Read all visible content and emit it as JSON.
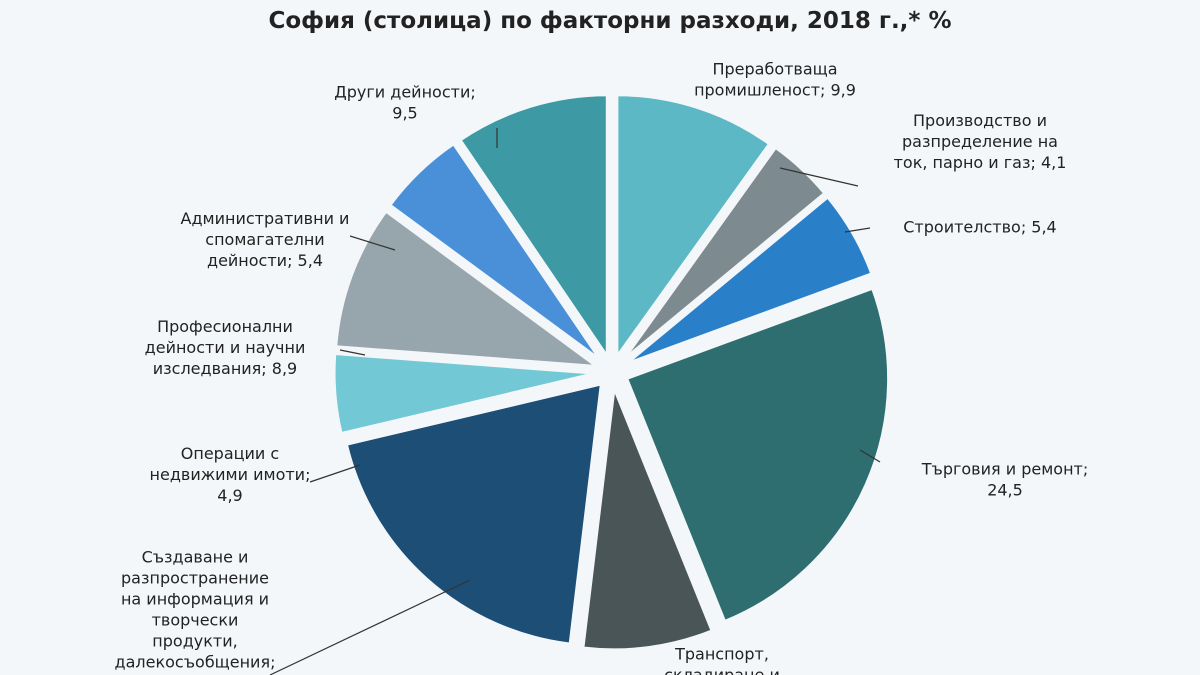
{
  "chart_data": {
    "type": "pie",
    "title": "София (столица) по факторни разходи, 2018 г.,* %",
    "labels": [
      "Преработваща\nпромишленост; 9,9",
      "Производство и\nразпределение на\nток, парно и газ; 4,1",
      "Строителство; 5,4",
      "Търговия и ремонт;\n24,5",
      "Транспорт,\nскладиране и",
      "Създаване и\nразпространение\nна информация и\nтворчески\nпродукти,\nдалекосъобщения;",
      "Операции с\nнедвижими имоти;\n4,9",
      "Професионални\nдейности и научни\nизследвания; 8,9",
      "Административни и\nспомагателни\nдейности; 5,4",
      "Други дейности;\n9,5"
    ],
    "values": [
      9.9,
      4.1,
      5.4,
      24.5,
      8.0,
      19.4,
      4.9,
      8.9,
      5.4,
      9.5
    ],
    "colors": [
      "#5bb8c4",
      "#7d8b91",
      "#2a7fc9",
      "#2e6e70",
      "#4a5558",
      "#1d4e75",
      "#72c8d4",
      "#97a5ad",
      "#4a90d9",
      "#3d9aa5"
    ]
  }
}
